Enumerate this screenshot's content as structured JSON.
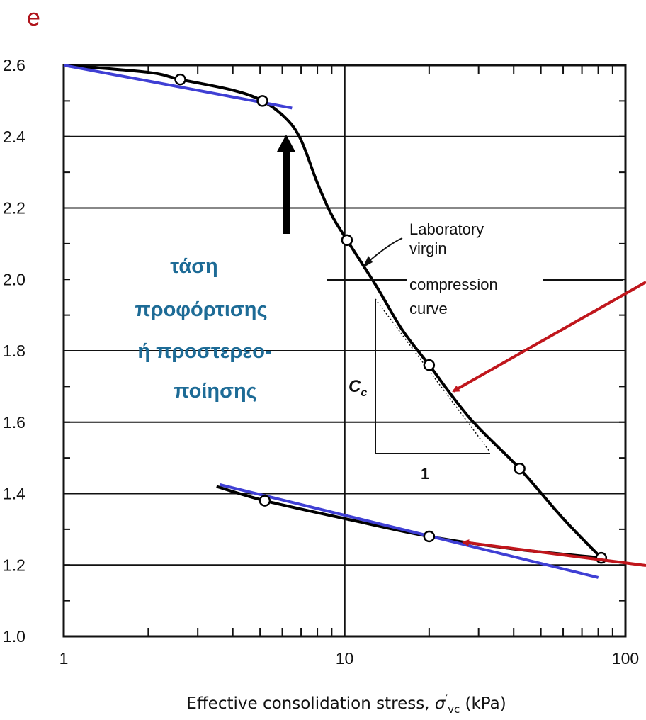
{
  "chart_data": {
    "type": "line",
    "ylabel": "e",
    "xlabel_parts": [
      "Effective consolidation stress, ",
      "σ",
      "′",
      "vc",
      "  (kPa)"
    ],
    "xscale": "log",
    "xlim": [
      1,
      100
    ],
    "ylim": [
      1.0,
      2.6
    ],
    "x_ticks": [
      1,
      10,
      100
    ],
    "x_tick_labels": [
      "1",
      "10",
      "100"
    ],
    "y_ticks": [
      1.0,
      1.2,
      1.4,
      1.6,
      1.8,
      2.0,
      2.2,
      2.4,
      2.6
    ],
    "y_tick_labels": [
      "1.0",
      "1.2",
      "1.4",
      "1.6",
      "1.8",
      "2.0",
      "2.2",
      "2.4",
      "2.6"
    ],
    "grid": "horizontal",
    "series": [
      {
        "kind": "curve",
        "points": [
          [
            1,
            2.6
          ],
          [
            2,
            2.58
          ],
          [
            2.6,
            2.56
          ],
          [
            4,
            2.53
          ],
          [
            5.1,
            2.5
          ],
          [
            6.2,
            2.45
          ],
          [
            7,
            2.39
          ],
          [
            8,
            2.27
          ],
          [
            9,
            2.18
          ],
          [
            10.2,
            2.11
          ],
          [
            13,
            1.98
          ],
          [
            16,
            1.86
          ],
          [
            20,
            1.76
          ],
          [
            28,
            1.61
          ],
          [
            42,
            1.47
          ],
          [
            60,
            1.33
          ],
          [
            82,
            1.22
          ]
        ]
      },
      {
        "kind": "curve",
        "points": [
          [
            3.5,
            1.42
          ],
          [
            5.2,
            1.38
          ],
          [
            10,
            1.33
          ],
          [
            20,
            1.28
          ],
          [
            40,
            1.245
          ],
          [
            82,
            1.22
          ]
        ]
      },
      {
        "kind": "markers",
        "points": [
          [
            2.6,
            2.56
          ],
          [
            5.1,
            2.5
          ],
          [
            10.2,
            2.11
          ],
          [
            20,
            1.76
          ],
          [
            42,
            1.47
          ],
          [
            82,
            1.22
          ],
          [
            5.2,
            1.38
          ],
          [
            20,
            1.28
          ]
        ]
      },
      {
        "kind": "tangent",
        "color": "#3f3fd4",
        "points": [
          [
            1,
            2.6
          ],
          [
            6.5,
            2.48
          ]
        ]
      },
      {
        "kind": "tangent",
        "color": "#3f3fd4",
        "points": [
          [
            3.6,
            1.425
          ],
          [
            80,
            1.165
          ]
        ]
      }
    ],
    "annotations": {
      "curve_label": [
        "Laboratory",
        "virgin",
        "compression",
        "curve"
      ],
      "slope_label": "C",
      "slope_subscript": "c",
      "slope_run_label": "1",
      "preconsolidation_label": [
        "τάση",
        "προφόρτισης",
        "ή προστερεο-",
        "ποίησης"
      ]
    },
    "colors": {
      "tangent": "#3f3fd4",
      "red_arrow": "#c0161c",
      "greek_text": "#1d6b96",
      "y_label": "#b0141c"
    }
  }
}
